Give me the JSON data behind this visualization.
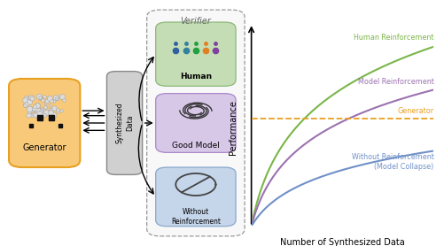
{
  "figure_width": 5.02,
  "figure_height": 2.78,
  "dpi": 100,
  "background_color": "#ffffff",
  "left_panel": {
    "generator_box_color": "#f9c97a",
    "generator_box_edge": "#e8a020",
    "generator_label": "Generator",
    "synth_box_color": "#d0d0d0",
    "synth_box_edge": "#888888",
    "synth_label": "Synthesized\nData",
    "verifier_label": "Verifier",
    "verifier_dash_color": "#999999",
    "human_box_color": "#c5ddb5",
    "human_box_edge": "#8ab878",
    "human_label": "Human",
    "goodmodel_box_color": "#d8c8e8",
    "goodmodel_box_edge": "#a888c8",
    "goodmodel_label": "Good Model",
    "without_box_color": "#c5d5ea",
    "without_box_edge": "#88a8cc",
    "without_label": "Without\nReinforcement"
  },
  "right_panel": {
    "x_label": "Number of Synthesized Data",
    "y_label": "Performance",
    "human_color": "#7ab648",
    "model_color": "#9b72b0",
    "generator_color": "#e8a020",
    "without_color": "#7090c8",
    "human_label": "Human Reinforcement",
    "model_label": "Model Reinforcement",
    "generator_label": "Generator",
    "without_label": "Without Reinforcement\n(Model Collapse)"
  }
}
